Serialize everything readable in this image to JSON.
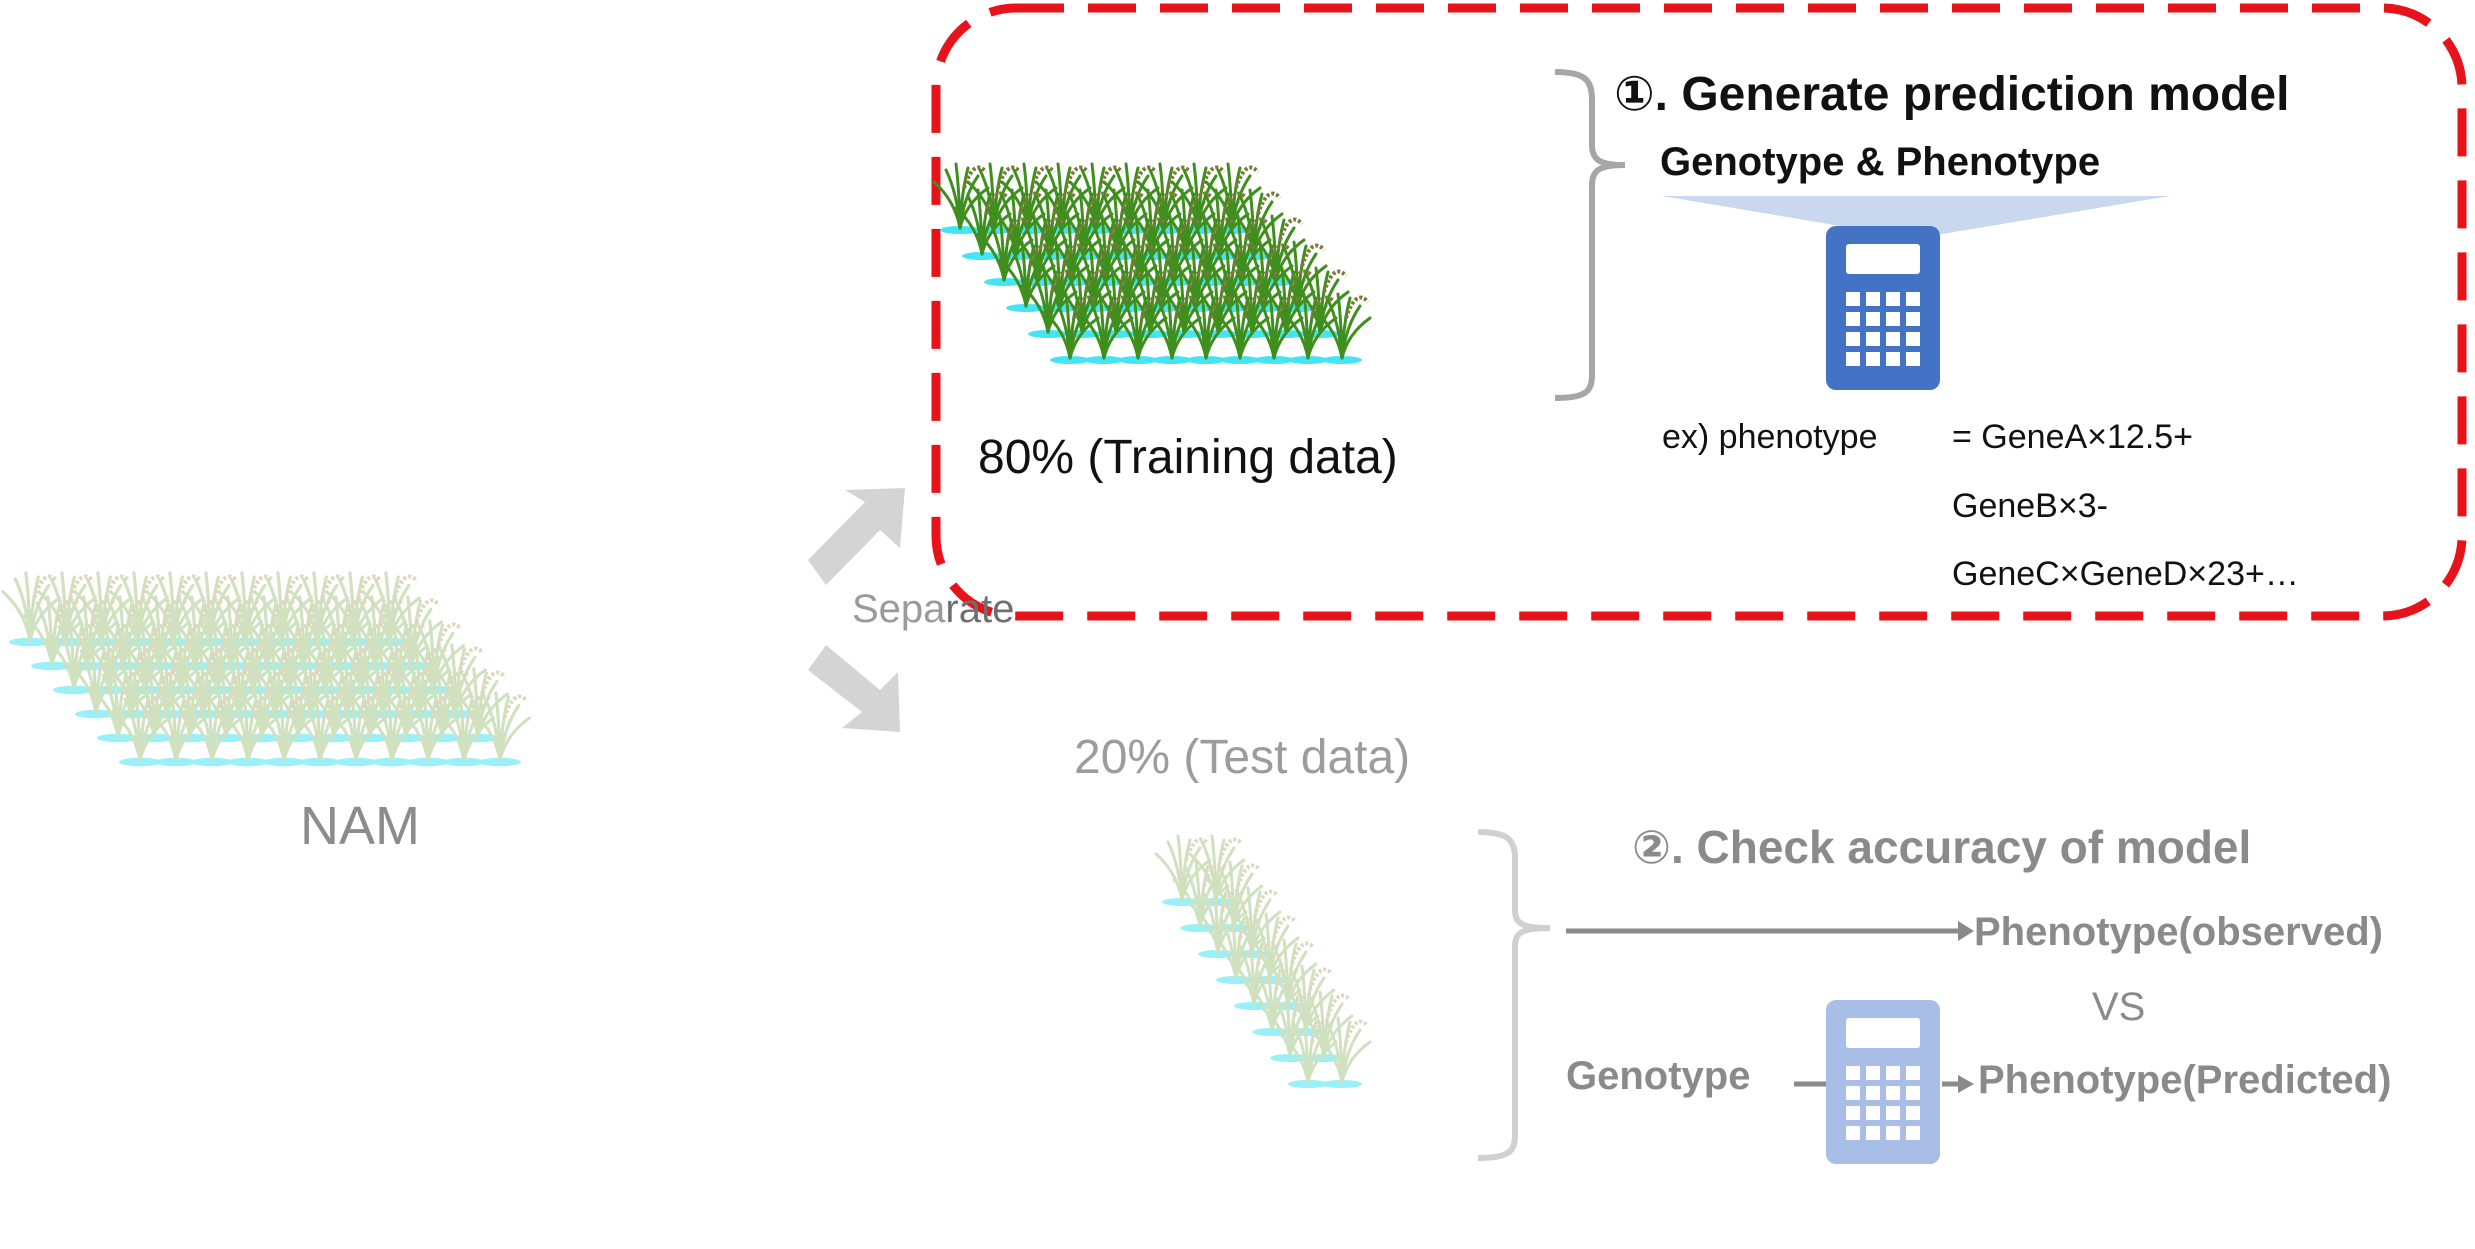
{
  "nam": {
    "label": "NAM"
  },
  "separate": {
    "label_part1": "Sepa",
    "label_part2": "rate"
  },
  "training": {
    "label": "80% (Training data)",
    "share_percent": 80
  },
  "test": {
    "label": "20% (Test data)",
    "share_percent": 20
  },
  "step1": {
    "title": "①. Generate prediction model",
    "input_label": "Genotype & Phenotype",
    "equation_prefix": "ex) phenotype",
    "equation_lines": [
      "= GeneA×12.5+",
      "GeneB×3-",
      "GeneC×GeneD×23+…"
    ]
  },
  "step2": {
    "title": "②. Check accuracy of model",
    "observed_label": "Phenotype(observed)",
    "vs_label": "VS",
    "genotype_label": "Genotype",
    "predicted_label": "Phenotype(Predicted)"
  },
  "colors": {
    "highlight_border": "#e8121b",
    "calculator": "#4472c4",
    "calculator_faded": "#a9bee6",
    "arrow": "#d4d4d4",
    "water": "#45e4f5",
    "leaf": "#3f8f1e",
    "leaf_faded": "#a8c98a"
  }
}
